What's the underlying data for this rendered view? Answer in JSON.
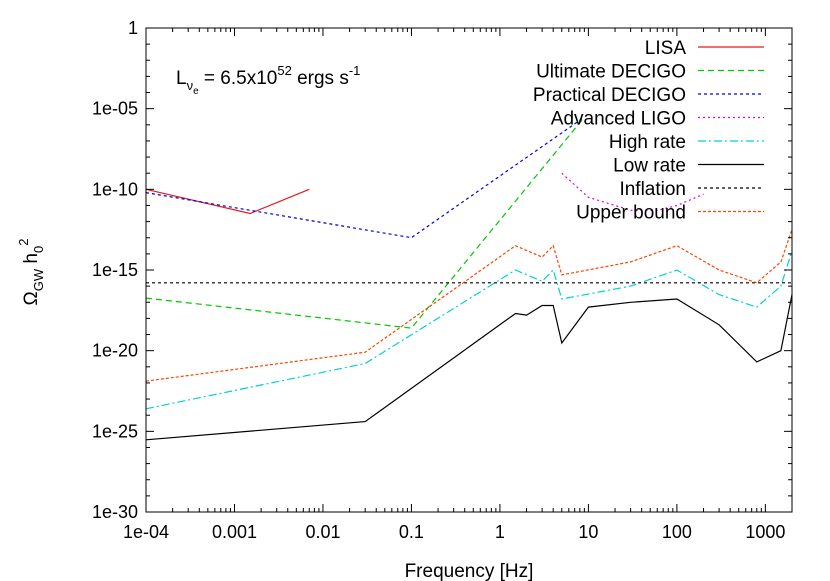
{
  "chart_data": {
    "type": "line",
    "xlabel": "Frequency [Hz]",
    "ylabel": {
      "main": "Ω",
      "sub": "GW",
      "mid": " h",
      "sub2": "0",
      "sup": "2"
    },
    "x_scale": "log",
    "y_scale": "log",
    "xlim": [
      0.0001,
      2000
    ],
    "ylim": [
      1e-30,
      1
    ],
    "x_ticks": [
      {
        "value": 0.0001,
        "label": "1e-04"
      },
      {
        "value": 0.001,
        "label": "0.001"
      },
      {
        "value": 0.01,
        "label": "0.01"
      },
      {
        "value": 0.1,
        "label": "0.1"
      },
      {
        "value": 1,
        "label": "1"
      },
      {
        "value": 10,
        "label": "10"
      },
      {
        "value": 100,
        "label": "100"
      },
      {
        "value": 1000,
        "label": "1000"
      }
    ],
    "y_ticks": [
      {
        "value": 1,
        "label": "1"
      },
      {
        "value": 1e-05,
        "label": "1e-05"
      },
      {
        "value": 1e-10,
        "label": "1e-10"
      },
      {
        "value": 1e-15,
        "label": "1e-15"
      },
      {
        "value": 1e-20,
        "label": "1e-20"
      },
      {
        "value": 1e-25,
        "label": "1e-25"
      },
      {
        "value": 1e-30,
        "label": "1e-30"
      }
    ],
    "grid": false,
    "legend_position": "top-right",
    "annotation": {
      "base": "L",
      "sub": "ν",
      "subsub": "e",
      "text": " = 6.5x10",
      "sup": "52",
      "text2": " ergs s",
      "sup2": "-1"
    },
    "series": [
      {
        "name": "LISA",
        "color": "#e41a1c",
        "dash": "",
        "x": [
          0.0001,
          0.0015,
          0.007
        ],
        "y": [
          1e-10,
          3.2e-12,
          1e-10
        ]
      },
      {
        "name": "Ultimate DECIGO",
        "color": "#00c800",
        "dash": "6,4",
        "x": [
          0.0001,
          0.1,
          9
        ],
        "y": [
          1.8e-17,
          2.5e-19,
          3e-06
        ]
      },
      {
        "name": "Practical DECIGO",
        "color": "#0000dc",
        "dash": "3,3",
        "x": [
          0.0001,
          0.1,
          9
        ],
        "y": [
          6.3e-11,
          1e-13,
          3e-06
        ]
      },
      {
        "name": "Advanced LIGO",
        "color": "#dc00dc",
        "dash": "2,3",
        "x": [
          5,
          10,
          30,
          60,
          100,
          200
        ],
        "y": [
          1e-09,
          3.2e-11,
          5e-12,
          5e-12,
          1e-11,
          5e-11
        ]
      },
      {
        "name": "High rate",
        "color": "#00d2d2",
        "dash": "8,3,2,3",
        "x": [
          0.0001,
          0.03,
          1.5,
          3,
          4,
          5,
          30,
          100,
          300,
          800,
          1500,
          2000
        ],
        "y": [
          2.5e-24,
          1.6e-21,
          1e-15,
          2e-16,
          1e-15,
          1.6e-17,
          1e-16,
          1e-15,
          3e-17,
          5e-18,
          1e-16,
          1.6e-14
        ]
      },
      {
        "name": "Low rate",
        "color": "#000000",
        "dash": "",
        "x": [
          0.0001,
          0.03,
          1.5,
          2,
          3,
          4,
          5,
          10,
          30,
          100,
          300,
          800,
          1500,
          2000
        ],
        "y": [
          3e-26,
          4e-25,
          2e-18,
          1.6e-18,
          6.3e-18,
          6.3e-18,
          3e-20,
          5e-18,
          1e-17,
          1.6e-17,
          4e-19,
          2e-21,
          1e-20,
          3e-17
        ]
      },
      {
        "name": "Inflation",
        "color": "#000000",
        "dash": "3,3",
        "x": [
          0.0001,
          2000
        ],
        "y": [
          1.6e-16,
          1.6e-16
        ]
      },
      {
        "name": "Upper bound",
        "color": "#ff4500",
        "dash": "3,2",
        "x": [
          0.0001,
          0.03,
          1.5,
          3,
          4,
          5,
          30,
          100,
          300,
          800,
          1500,
          2000
        ],
        "y": [
          1.3e-22,
          8e-21,
          3.2e-14,
          6.3e-15,
          3.2e-14,
          5e-16,
          3.2e-15,
          3.2e-14,
          1e-15,
          1.6e-16,
          3.2e-15,
          3.2e-13
        ]
      }
    ]
  }
}
